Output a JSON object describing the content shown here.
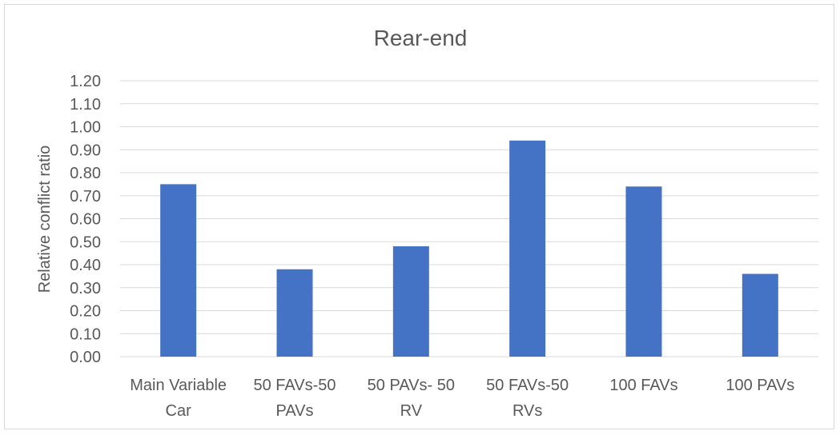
{
  "chart_data": {
    "type": "bar",
    "title": "Rear-end",
    "ylabel": "Relative conflict ratio",
    "xlabel": "",
    "categories": [
      [
        "Main Variable",
        "Car"
      ],
      [
        "50 FAVs-50",
        "PAVs"
      ],
      [
        "50 PAVs- 50",
        "RV"
      ],
      [
        "50 FAVs-50",
        "RVs"
      ],
      [
        "100 FAVs"
      ],
      [
        "100 PAVs"
      ]
    ],
    "values": [
      0.75,
      0.38,
      0.48,
      0.94,
      0.74,
      0.36
    ],
    "ylim": [
      0,
      1.2
    ],
    "yticks": [
      "0.00",
      "0.10",
      "0.20",
      "0.30",
      "0.40",
      "0.50",
      "0.60",
      "0.70",
      "0.80",
      "0.90",
      "1.00",
      "1.10",
      "1.20"
    ],
    "grid": true,
    "bar_color": "#4472c4",
    "grid_color": "#d9d9d9"
  }
}
